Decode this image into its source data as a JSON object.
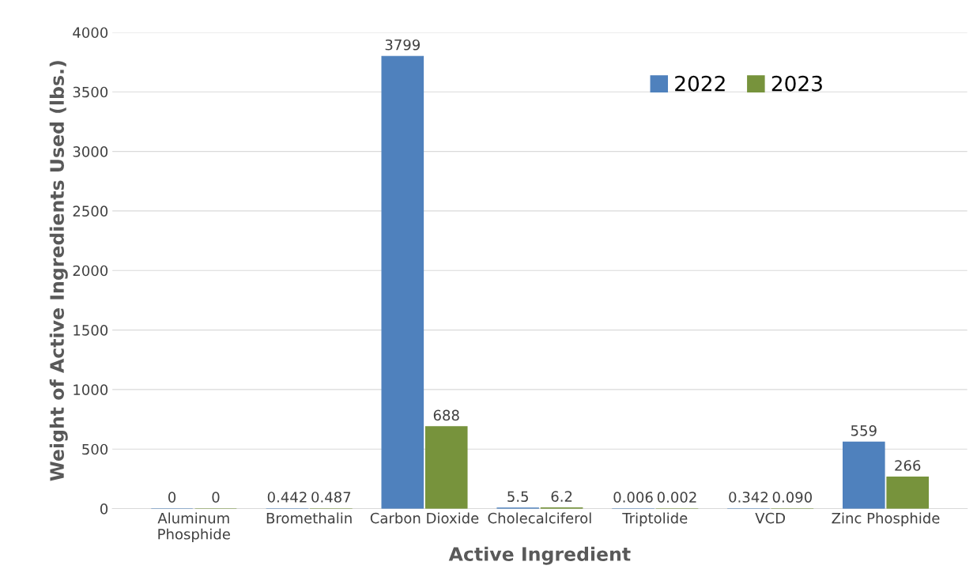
{
  "chart_data": {
    "type": "bar",
    "xlabel": "Active Ingredient",
    "ylabel": "Weight of Active Ingredients Used (lbs.)",
    "categories": [
      "Aluminum\nPhosphide",
      "Bromethalin",
      "Carbon Dioxide",
      "Cholecalciferol",
      "Triptolide",
      "VCD",
      "Zinc Phosphide"
    ],
    "series": [
      {
        "name": "2022",
        "color": "#4f81bd",
        "values": [
          0,
          0.442,
          3799,
          5.5,
          0.006,
          0.342,
          559
        ],
        "value_labels": [
          "0",
          "0.442",
          "3799",
          "5.5",
          "0.006",
          "0.342",
          "559"
        ]
      },
      {
        "name": "2023",
        "color": "#77933c",
        "values": [
          0,
          0.487,
          688,
          6.2,
          0.002,
          0.09,
          266
        ],
        "value_labels": [
          "0",
          "0.487",
          "688",
          "6.2",
          "0.002",
          "0.090",
          "266"
        ]
      }
    ],
    "ylim": [
      0,
      4000
    ],
    "yticks": [
      0,
      500,
      1000,
      1500,
      2000,
      2500,
      3000,
      3500,
      4000
    ],
    "grid": "y",
    "legend": "top right"
  }
}
